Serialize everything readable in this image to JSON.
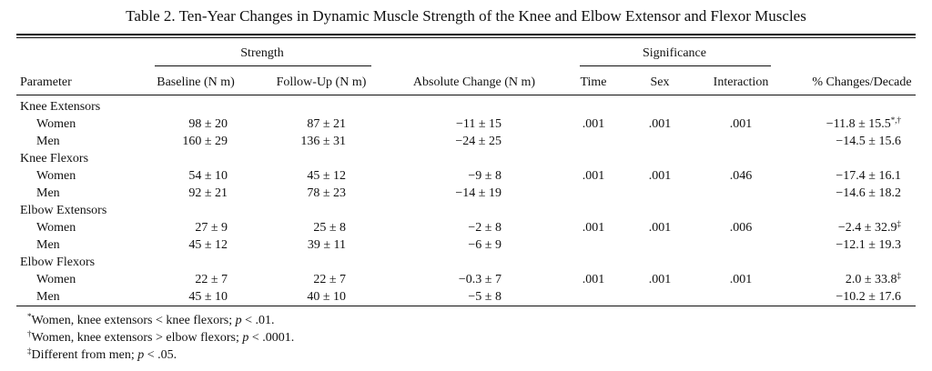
{
  "title": "Table 2. Ten-Year Changes in Dynamic Muscle Strength of the Knee and Elbow Extensor and Flexor Muscles",
  "group_headers": {
    "strength": "Strength",
    "significance": "Significance"
  },
  "columns": {
    "parameter": "Parameter",
    "baseline": "Baseline (N m)",
    "followup": "Follow-Up (N m)",
    "absolute": "Absolute Change (N m)",
    "time": "Time",
    "sex": "Sex",
    "interaction": "Interaction",
    "pct": "% Changes/Decade"
  },
  "sections": [
    {
      "name": "Knee Extensors",
      "rows": [
        {
          "label": "Women",
          "baseline": "98 ± 20",
          "followup": "87 ± 21",
          "absolute": "−11 ± 15",
          "time": ".001",
          "sex": ".001",
          "interaction": ".001",
          "pct": "−11.8 ± 15.5",
          "pct_mark": "*,†"
        },
        {
          "label": "Men",
          "baseline": "160 ± 29",
          "followup": "136 ± 31",
          "absolute": "−24 ± 25",
          "time": "",
          "sex": "",
          "interaction": "",
          "pct": "−14.5 ± 15.6",
          "pct_mark": ""
        }
      ]
    },
    {
      "name": "Knee Flexors",
      "rows": [
        {
          "label": "Women",
          "baseline": "54 ± 10",
          "followup": "45 ± 12",
          "absolute": "−9 ± 8",
          "time": ".001",
          "sex": ".001",
          "interaction": ".046",
          "pct": "−17.4 ± 16.1",
          "pct_mark": ""
        },
        {
          "label": "Men",
          "baseline": "92 ± 21",
          "followup": "78 ± 23",
          "absolute": "−14 ± 19",
          "time": "",
          "sex": "",
          "interaction": "",
          "pct": "−14.6 ± 18.2",
          "pct_mark": ""
        }
      ]
    },
    {
      "name": "Elbow Extensors",
      "rows": [
        {
          "label": "Women",
          "baseline": "27 ± 9",
          "followup": "25 ± 8",
          "absolute": "−2 ± 8",
          "time": ".001",
          "sex": ".001",
          "interaction": ".006",
          "pct": "−2.4 ± 32.9",
          "pct_mark": "‡"
        },
        {
          "label": "Men",
          "baseline": "45 ± 12",
          "followup": "39 ± 11",
          "absolute": "−6 ± 9",
          "time": "",
          "sex": "",
          "interaction": "",
          "pct": "−12.1 ± 19.3",
          "pct_mark": ""
        }
      ]
    },
    {
      "name": "Elbow Flexors",
      "rows": [
        {
          "label": "Women",
          "baseline": "22 ± 7",
          "followup": "22 ± 7",
          "absolute": "−0.3 ± 7",
          "time": ".001",
          "sex": ".001",
          "interaction": ".001",
          "pct": "2.0 ± 33.8",
          "pct_mark": "‡"
        },
        {
          "label": "Men",
          "baseline": "45 ± 10",
          "followup": "40 ± 10",
          "absolute": "−5 ± 8",
          "time": "",
          "sex": "",
          "interaction": "",
          "pct": "−10.2 ± 17.6",
          "pct_mark": ""
        }
      ]
    }
  ],
  "footnotes": [
    {
      "mark": "*",
      "pre": "Women, knee extensors < knee flexors; ",
      "p": "p",
      "post": " < .01."
    },
    {
      "mark": "†",
      "pre": "Women, knee extensors > elbow flexors; ",
      "p": "p",
      "post": " < .0001."
    },
    {
      "mark": "‡",
      "pre": "Different from men; ",
      "p": "p",
      "post": " < .05."
    }
  ]
}
